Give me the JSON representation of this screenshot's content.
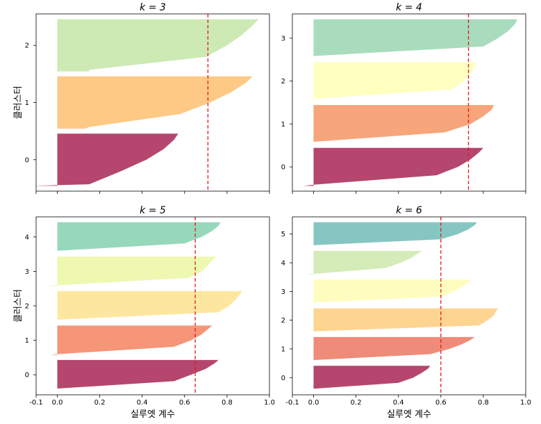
{
  "chart_data": [
    {
      "type": "area",
      "title": "k = 3",
      "ylabel": "클러스터",
      "xlabel": "",
      "xlim": [
        -0.1,
        1.0
      ],
      "yticks": [
        "0",
        "1",
        "2"
      ],
      "silhouette_average": 0.71,
      "clusters": [
        {
          "label": "0",
          "color": "#b5466e",
          "coef_max": 0.57,
          "coef_min": -0.12,
          "shape": [
            -0.12,
            0.15,
            0.3,
            0.42,
            0.5,
            0.55,
            0.57
          ]
        },
        {
          "label": "1",
          "color": "#fdc985",
          "coef_max": 0.92,
          "coef_min": 0.13,
          "shape": [
            0.13,
            0.15,
            0.58,
            0.72,
            0.82,
            0.89,
            0.92
          ]
        },
        {
          "label": "2",
          "color": "#cde9b4",
          "coef_max": 0.95,
          "coef_min": 0.15,
          "shape": [
            0.15,
            0.15,
            0.7,
            0.8,
            0.87,
            0.92,
            0.95
          ]
        }
      ]
    },
    {
      "type": "area",
      "title": "k = 4",
      "ylabel": "",
      "xlabel": "",
      "xlim": [
        -0.1,
        1.0
      ],
      "yticks": [
        "0",
        "1",
        "2",
        "3"
      ],
      "silhouette_average": 0.73,
      "clusters": [
        {
          "label": "0",
          "color": "#b5466e",
          "coef_max": 0.8,
          "coef_min": -0.05,
          "shape": [
            -0.05,
            0.0,
            0.58,
            0.68,
            0.74,
            0.78,
            0.8
          ]
        },
        {
          "label": "1",
          "color": "#f7a57a",
          "coef_max": 0.85,
          "coef_min": 0.0,
          "shape": [
            0.0,
            0.0,
            0.62,
            0.74,
            0.8,
            0.84,
            0.85
          ]
        },
        {
          "label": "2",
          "color": "#ffffc0",
          "coef_max": 0.77,
          "coef_min": -0.03,
          "shape": [
            -0.03,
            0.0,
            0.65,
            0.71,
            0.74,
            0.76,
            0.77
          ]
        },
        {
          "label": "3",
          "color": "#a8dcbd",
          "coef_max": 0.96,
          "coef_min": 0.0,
          "shape": [
            0.0,
            0.0,
            0.8,
            0.87,
            0.92,
            0.95,
            0.96
          ]
        }
      ]
    },
    {
      "type": "area",
      "title": "k = 5",
      "ylabel": "클러스터",
      "xlabel": "실루엣 계수",
      "xlim": [
        -0.1,
        1.0
      ],
      "yticks": [
        "0",
        "1",
        "2",
        "3",
        "4"
      ],
      "xticks": [
        "-0.1",
        "0.0",
        "0.2",
        "0.4",
        "0.6",
        "0.8",
        "1.0"
      ],
      "silhouette_average": 0.65,
      "clusters": [
        {
          "label": "0",
          "color": "#b5466e",
          "coef_max": 0.76,
          "coef_min": 0.0,
          "shape": [
            0.0,
            0.0,
            0.55,
            0.63,
            0.7,
            0.74,
            0.76
          ]
        },
        {
          "label": "1",
          "color": "#f69577",
          "coef_max": 0.73,
          "coef_min": -0.03,
          "shape": [
            -0.03,
            0.0,
            0.55,
            0.63,
            0.68,
            0.71,
            0.73
          ]
        },
        {
          "label": "2",
          "color": "#fde7a0",
          "coef_max": 0.87,
          "coef_min": 0.0,
          "shape": [
            0.0,
            0.0,
            0.76,
            0.81,
            0.84,
            0.86,
            0.87
          ]
        },
        {
          "label": "3",
          "color": "#eef8b0",
          "coef_max": 0.75,
          "coef_min": -0.05,
          "shape": [
            -0.05,
            0.0,
            0.62,
            0.68,
            0.71,
            0.73,
            0.75
          ]
        },
        {
          "label": "4",
          "color": "#97d8bc",
          "coef_max": 0.77,
          "coef_min": 0.0,
          "shape": [
            0.0,
            0.0,
            0.6,
            0.68,
            0.73,
            0.76,
            0.77
          ]
        }
      ]
    },
    {
      "type": "area",
      "title": "k = 6",
      "ylabel": "",
      "xlabel": "실루엣 계수",
      "xlim": [
        -0.1,
        1.0
      ],
      "yticks": [
        "0",
        "1",
        "2",
        "3",
        "4",
        "5"
      ],
      "xticks": [
        "-0.1",
        "0.0",
        "0.2",
        "0.4",
        "0.6",
        "0.8",
        "1.0"
      ],
      "silhouette_average": 0.6,
      "clusters": [
        {
          "label": "0",
          "color": "#b5466e",
          "coef_max": 0.55,
          "coef_min": 0.0,
          "shape": [
            0.0,
            0.0,
            0.4,
            0.47,
            0.51,
            0.54,
            0.55
          ]
        },
        {
          "label": "1",
          "color": "#ef8b79",
          "coef_max": 0.76,
          "coef_min": 0.0,
          "shape": [
            0.0,
            0.0,
            0.55,
            0.64,
            0.7,
            0.74,
            0.76
          ]
        },
        {
          "label": "2",
          "color": "#fdd591",
          "coef_max": 0.87,
          "coef_min": 0.0,
          "shape": [
            0.0,
            0.0,
            0.78,
            0.82,
            0.85,
            0.86,
            0.87
          ]
        },
        {
          "label": "3",
          "color": "#fffcc0",
          "coef_max": 0.74,
          "coef_min": -0.03,
          "shape": [
            -0.03,
            0.0,
            0.6,
            0.66,
            0.7,
            0.73,
            0.74
          ]
        },
        {
          "label": "4",
          "color": "#d3ecb8",
          "coef_max": 0.51,
          "coef_min": -0.04,
          "shape": [
            -0.04,
            0.0,
            0.34,
            0.41,
            0.46,
            0.49,
            0.51
          ]
        },
        {
          "label": "5",
          "color": "#86c6c2",
          "coef_max": 0.77,
          "coef_min": 0.0,
          "shape": [
            0.0,
            0.0,
            0.6,
            0.68,
            0.73,
            0.76,
            0.77
          ]
        }
      ]
    }
  ]
}
